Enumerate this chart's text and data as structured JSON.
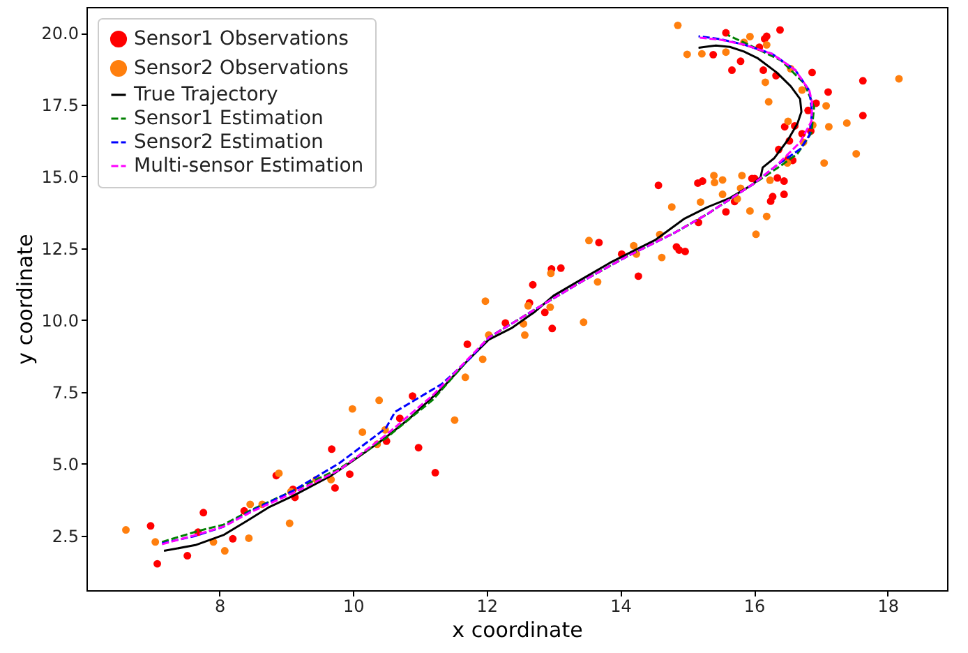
{
  "chart_data": {
    "type": "scatter",
    "xlabel": "x coordinate",
    "ylabel": "y coordinate",
    "xlim": [
      6.01,
      18.89
    ],
    "ylim": [
      0.6,
      20.9
    ],
    "xticks": [
      8,
      10,
      12,
      14,
      16,
      18
    ],
    "yticks": [
      {
        "value": 2.5,
        "label": "2.5"
      },
      {
        "value": 5,
        "label": "5.0"
      },
      {
        "value": 7.5,
        "label": "7.5"
      },
      {
        "value": 10,
        "label": "10.0"
      },
      {
        "value": 12.5,
        "label": "12.5"
      },
      {
        "value": 15,
        "label": "15.0"
      },
      {
        "value": 17.5,
        "label": "17.5"
      },
      {
        "value": 20,
        "label": "20.0"
      }
    ],
    "grid": false,
    "legend": "top left",
    "series": [
      {
        "name": "Sensor1 Observations",
        "marker": "circle",
        "color": "#ff0000",
        "x": [
          6.97,
          7.07,
          7.52,
          7.68,
          7.76,
          8.2,
          8.37,
          8.85,
          9.1,
          9.13,
          9.68,
          9.73,
          9.95,
          10.5,
          10.7,
          10.89,
          10.98,
          11.23,
          11.71,
          12.28,
          12.64,
          12.69,
          12.87,
          12.98,
          12.97,
          13.11,
          13.68,
          14.02,
          14.27,
          14.84,
          14.88,
          14.97,
          14.57,
          15.17,
          15.16,
          15.23,
          15.58,
          15.71,
          15.97,
          16.01,
          16.25,
          16.28,
          16.35,
          16.45,
          16.45,
          16.37,
          16.51,
          16.58,
          16.53,
          16.72,
          16.46,
          16.61,
          16.85,
          17.63,
          16.93,
          16.81,
          17.11,
          16.87,
          16.14,
          16.33,
          15.67,
          15.8,
          15.39,
          15.58,
          16.08,
          16.16,
          16.19,
          16.39,
          17.63
        ],
        "values": [
          2.84,
          1.52,
          1.8,
          2.62,
          3.3,
          2.39,
          3.36,
          4.59,
          4.11,
          3.83,
          5.51,
          4.16,
          4.64,
          5.79,
          6.58,
          7.36,
          5.56,
          4.69,
          9.16,
          9.9,
          10.6,
          11.23,
          10.27,
          9.71,
          11.78,
          11.81,
          12.7,
          12.3,
          11.53,
          12.55,
          12.44,
          12.39,
          14.69,
          13.4,
          14.77,
          14.84,
          13.77,
          14.13,
          14.93,
          14.93,
          14.14,
          14.3,
          14.95,
          14.84,
          14.38,
          15.94,
          15.6,
          15.56,
          16.24,
          16.49,
          16.73,
          16.76,
          16.58,
          17.12,
          17.55,
          17.3,
          17.94,
          18.62,
          18.7,
          18.51,
          18.7,
          19.01,
          19.24,
          20.0,
          19.5,
          19.79,
          19.88,
          20.1,
          18.33
        ]
      },
      {
        "name": "Sensor2 Observations",
        "marker": "circle",
        "color": "#ff7f0e",
        "x": [
          6.6,
          7.04,
          7.91,
          8.08,
          8.44,
          8.46,
          8.64,
          8.89,
          9.05,
          9.07,
          9.45,
          9.67,
          9.99,
          10.14,
          10.36,
          10.39,
          10.48,
          11.52,
          11.68,
          11.94,
          11.98,
          12.03,
          12.55,
          12.57,
          12.62,
          12.95,
          12.96,
          13.45,
          13.53,
          13.66,
          14.2,
          14.24,
          14.59,
          14.62,
          14.77,
          15.2,
          15.4,
          15.41,
          15.53,
          15.53,
          15.75,
          15.8,
          15.82,
          15.94,
          16.03,
          16.19,
          16.24,
          16.5,
          16.74,
          16.51,
          16.88,
          17.05,
          17.12,
          17.39,
          17.53,
          17.08,
          16.72,
          16.22,
          16.17,
          16.55,
          15.58,
          15.22,
          15.0,
          14.86,
          15.94,
          15.85,
          16.19,
          18.17
        ],
        "values": [
          2.7,
          2.28,
          2.28,
          1.97,
          2.41,
          3.59,
          3.59,
          4.67,
          2.93,
          4.03,
          4.45,
          4.45,
          6.91,
          6.1,
          5.68,
          7.21,
          6.18,
          6.52,
          8.01,
          8.64,
          10.66,
          9.48,
          9.87,
          9.48,
          10.5,
          10.45,
          11.63,
          9.93,
          12.77,
          11.33,
          12.59,
          12.3,
          12.98,
          12.18,
          13.94,
          14.11,
          15.03,
          14.79,
          14.88,
          14.38,
          14.22,
          14.59,
          15.03,
          13.8,
          12.99,
          13.61,
          14.87,
          15.47,
          16.19,
          16.92,
          16.79,
          15.47,
          16.73,
          16.86,
          15.79,
          17.46,
          18.01,
          17.6,
          18.28,
          18.75,
          19.33,
          19.27,
          19.25,
          20.26,
          19.87,
          19.67,
          19.58,
          18.4
        ]
      },
      {
        "name": "True Trajectory",
        "type": "line",
        "line_style": "solid",
        "color": "#000000",
        "x": [
          7.17,
          7.64,
          8.06,
          8.41,
          8.75,
          9.1,
          9.66,
          10.15,
          10.49,
          10.84,
          11.33,
          11.68,
          12.03,
          12.37,
          12.72,
          13.0,
          13.42,
          13.84,
          14.18,
          14.53,
          14.95,
          15.3,
          15.64,
          15.99,
          16.1,
          16.13,
          16.3,
          16.51,
          16.65,
          16.71,
          16.69,
          16.55,
          16.34,
          16.06,
          15.85,
          15.64,
          15.43,
          15.17
        ],
        "values": [
          1.97,
          2.17,
          2.52,
          3.01,
          3.5,
          3.88,
          4.57,
          5.35,
          5.92,
          6.57,
          7.62,
          8.51,
          9.32,
          9.72,
          10.29,
          10.85,
          11.42,
          11.99,
          12.39,
          12.8,
          13.52,
          13.93,
          14.25,
          14.74,
          14.98,
          15.31,
          15.63,
          16.28,
          16.84,
          17.25,
          17.7,
          18.14,
          18.62,
          19.11,
          19.35,
          19.51,
          19.56,
          19.48
        ]
      },
      {
        "name": "Sensor1 Estimation",
        "type": "line",
        "line_style": "dashed",
        "color": "#008000",
        "x": [
          7.14,
          7.71,
          8.06,
          8.48,
          9.1,
          9.8,
          10.49,
          11.19,
          11.68,
          12.03,
          12.72,
          13.42,
          14.11,
          14.81,
          15.3,
          15.99,
          16.41,
          16.65,
          16.86,
          16.9,
          16.76,
          16.41,
          15.99,
          15.61
        ],
        "values": [
          2.28,
          2.68,
          2.88,
          3.4,
          4.06,
          4.84,
          5.89,
          7.22,
          8.51,
          9.39,
          10.37,
          11.34,
          12.23,
          13.04,
          13.69,
          14.74,
          15.39,
          15.79,
          16.52,
          17.41,
          18.22,
          19.03,
          19.51,
          19.92
        ]
      },
      {
        "name": "Sensor2 Estimation",
        "type": "line",
        "line_style": "dashed",
        "color": "#0000ff",
        "x": [
          7.14,
          7.64,
          8.06,
          8.48,
          9.1,
          9.8,
          10.49,
          10.63,
          11.33,
          11.75,
          12.03,
          12.72,
          13.42,
          14.11,
          14.81,
          15.3,
          15.99,
          16.34,
          16.69,
          16.83,
          16.87,
          16.83,
          16.62,
          16.27,
          15.85,
          15.5,
          15.17
        ],
        "values": [
          2.23,
          2.49,
          2.81,
          3.36,
          4.06,
          5.03,
          6.24,
          6.81,
          7.78,
          8.67,
          9.39,
          10.37,
          11.34,
          12.23,
          13.04,
          13.69,
          14.74,
          15.39,
          15.95,
          16.44,
          17.25,
          17.98,
          18.7,
          19.27,
          19.59,
          19.78,
          19.88
        ]
      },
      {
        "name": "Multi-sensor Estimation",
        "type": "line",
        "line_style": "dashed",
        "color": "#ff00ff",
        "x": [
          7.14,
          7.64,
          8.06,
          8.48,
          9.1,
          9.8,
          10.49,
          11.19,
          12.03,
          12.72,
          13.42,
          14.11,
          14.81,
          15.3,
          15.99,
          16.34,
          16.69,
          16.86,
          16.87,
          16.83,
          16.62,
          16.27,
          15.85,
          15.5,
          15.19
        ],
        "values": [
          2.2,
          2.52,
          2.81,
          3.33,
          3.98,
          4.79,
          6.0,
          7.38,
          9.39,
          10.37,
          11.34,
          12.23,
          13.04,
          13.69,
          14.74,
          15.39,
          16.19,
          16.92,
          17.57,
          17.98,
          18.7,
          19.27,
          19.59,
          19.76,
          19.83
        ]
      }
    ]
  }
}
